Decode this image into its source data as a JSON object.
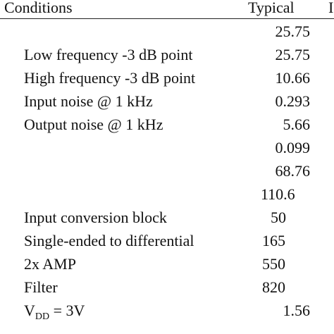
{
  "header": {
    "conditions": "Conditions",
    "typical": "Typical",
    "cut_column": "I"
  },
  "rows": [
    {
      "condition": "",
      "value": "25.75"
    },
    {
      "condition": "Low frequency -3 dB point",
      "value": "25.75"
    },
    {
      "condition": "High frequency -3 dB point",
      "value": "10.66"
    },
    {
      "condition": "Input noise @ 1 kHz",
      "value": "0.293"
    },
    {
      "condition": "Output noise @ 1 kHz",
      "value": "5.66"
    },
    {
      "condition": "",
      "value": "0.099"
    },
    {
      "condition": "",
      "value": "68.76"
    },
    {
      "condition": "",
      "value": "110.6"
    },
    {
      "condition": "Input conversion block",
      "value": "50"
    },
    {
      "condition": "Single-ended to differential",
      "value": "165"
    },
    {
      "condition": "2x AMP",
      "value": "550"
    },
    {
      "condition": "Filter",
      "value": "820"
    },
    {
      "condition_prefix": "V",
      "condition_sub": "DD",
      "condition_suffix": " = 3V",
      "value": "1.56"
    }
  ]
}
